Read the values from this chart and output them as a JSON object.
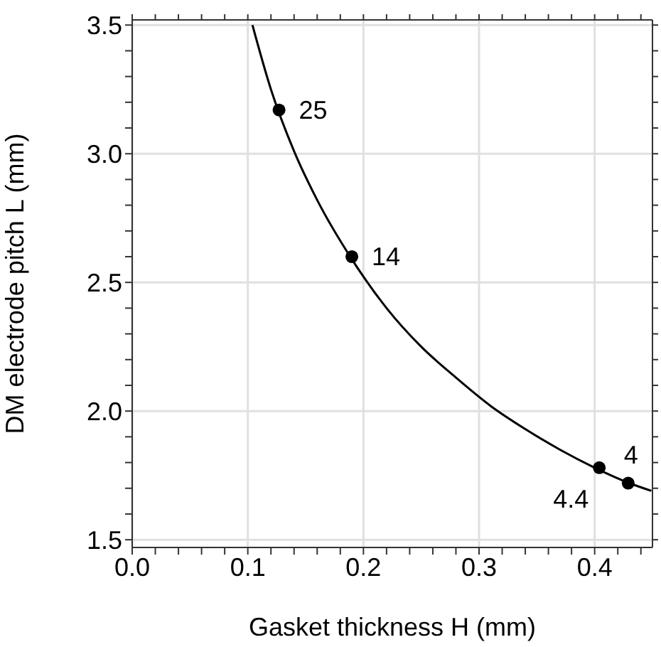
{
  "chart_data": {
    "type": "line",
    "xlabel": "Gasket thickness H (mm)",
    "ylabel": "DM electrode pitch L (mm)",
    "xlim": [
      0,
      0.45
    ],
    "ylim": [
      1.47,
      3.52
    ],
    "xticks": [
      {
        "value": 0,
        "label": "0.0"
      },
      {
        "value": 0.02,
        "label": null
      },
      {
        "value": 0.04,
        "label": null
      },
      {
        "value": 0.06,
        "label": null
      },
      {
        "value": 0.08,
        "label": null
      },
      {
        "value": 0.1,
        "label": "0.1"
      },
      {
        "value": 0.12,
        "label": null
      },
      {
        "value": 0.14,
        "label": null
      },
      {
        "value": 0.16,
        "label": null
      },
      {
        "value": 0.18,
        "label": null
      },
      {
        "value": 0.2,
        "label": "0.2"
      },
      {
        "value": 0.22,
        "label": null
      },
      {
        "value": 0.24,
        "label": null
      },
      {
        "value": 0.26,
        "label": null
      },
      {
        "value": 0.28,
        "label": null
      },
      {
        "value": 0.3,
        "label": "0.3"
      },
      {
        "value": 0.32,
        "label": null
      },
      {
        "value": 0.34,
        "label": null
      },
      {
        "value": 0.36,
        "label": null
      },
      {
        "value": 0.38,
        "label": null
      },
      {
        "value": 0.4,
        "label": "0.4"
      },
      {
        "value": 0.42,
        "label": null
      },
      {
        "value": 0.44,
        "label": null
      }
    ],
    "yticks": [
      1.5,
      {
        "value": 1.6,
        "label": null
      },
      {
        "value": 1.7,
        "label": null
      },
      {
        "value": 1.8,
        "label": null
      },
      {
        "value": 1.9,
        "label": null
      },
      {
        "value": 2.0,
        "label": "2.0"
      },
      {
        "value": 2.1,
        "label": null
      },
      {
        "value": 2.2,
        "label": null
      },
      {
        "value": 2.3,
        "label": null
      },
      {
        "value": 2.4,
        "label": null
      },
      2.5,
      {
        "value": 2.6,
        "label": null
      },
      {
        "value": 2.7,
        "label": null
      },
      {
        "value": 2.8,
        "label": null
      },
      {
        "value": 2.9,
        "label": null
      },
      {
        "value": 3.0,
        "label": "3.0"
      },
      {
        "value": 3.1,
        "label": null
      },
      {
        "value": 3.2,
        "label": null
      },
      {
        "value": 3.3,
        "label": null
      },
      {
        "value": 3.4,
        "label": null
      },
      3.5
    ],
    "grid": true,
    "series": [
      {
        "color": "#000000",
        "marker": "none",
        "line_style": "solid",
        "x": [
          0.104,
          0.12,
          0.14,
          0.16,
          0.19,
          0.22,
          0.25,
          0.28,
          0.31,
          0.34,
          0.37,
          0.4,
          0.43,
          0.449
        ],
        "values": [
          3.5,
          3.25,
          3.01,
          2.82,
          2.59,
          2.4,
          2.25,
          2.13,
          2.02,
          1.93,
          1.85,
          1.78,
          1.72,
          1.69
        ]
      },
      {
        "type": "scatter",
        "color": "#000000",
        "marker": "circle",
        "x": [
          0.127,
          0.19,
          0.404,
          0.429
        ],
        "values": [
          3.17,
          2.6,
          1.78,
          1.72
        ]
      }
    ],
    "annotations": [
      {
        "text": "25",
        "x": 0.127,
        "y": 3.17
      },
      {
        "text": "14",
        "x": 0.19,
        "y": 2.6
      },
      {
        "text": "4.4",
        "x": 0.404,
        "y": 1.78
      },
      {
        "text": "4",
        "x": 0.429,
        "y": 1.72
      }
    ]
  }
}
